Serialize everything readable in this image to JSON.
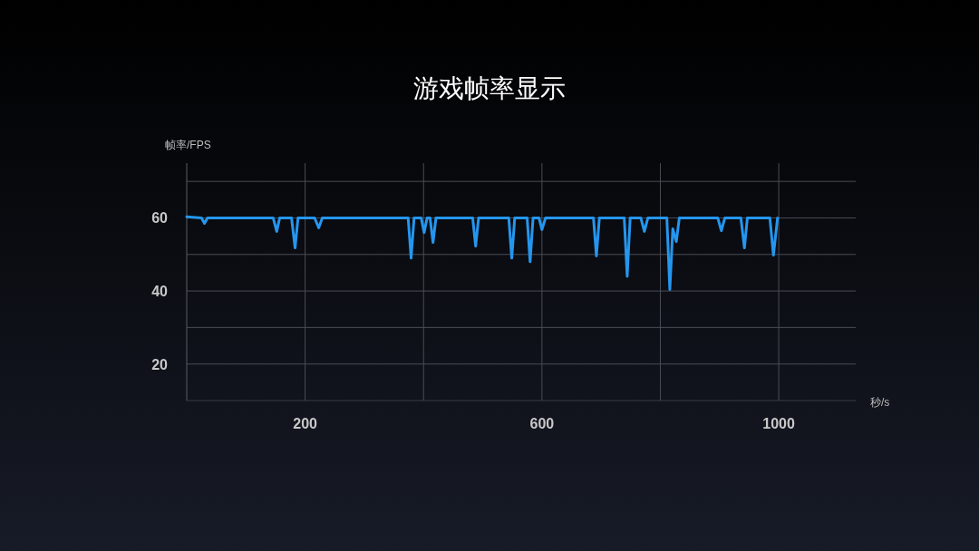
{
  "chart_data": {
    "type": "line",
    "title": "游戏帧率显示",
    "xlabel": "秒/s",
    "ylabel": "帧率/FPS",
    "x": [
      0,
      25,
      30,
      35,
      120,
      146,
      152,
      157,
      177,
      183,
      188,
      216,
      223,
      229,
      374,
      379,
      384,
      396,
      401,
      406,
      411,
      416,
      421,
      483,
      488,
      493,
      544,
      549,
      554,
      575,
      580,
      585,
      595,
      600,
      606,
      687,
      692,
      697,
      739,
      744,
      749,
      767,
      773,
      779,
      811,
      816,
      821,
      827,
      832,
      897,
      903,
      909,
      936,
      942,
      947,
      985,
      991,
      998
    ],
    "series": [
      {
        "color": "#2596ee",
        "values": [
          60.3,
          60,
          58.5,
          60,
          60,
          60,
          56.3,
          60,
          60,
          51.8,
          60,
          60,
          57.3,
          60,
          60,
          49,
          60,
          60,
          56,
          60,
          60,
          53.3,
          60,
          60,
          52.3,
          60,
          60,
          49,
          60,
          60,
          48,
          60,
          60,
          56.8,
          60,
          60,
          49.6,
          60,
          60,
          44,
          60,
          60,
          56.3,
          60,
          60,
          40.4,
          57,
          53.5,
          60,
          60,
          56.5,
          60,
          60,
          51.8,
          60,
          60,
          49.8,
          60
        ]
      }
    ],
    "xlim": [
      0,
      1130
    ],
    "xticks": [
      200,
      {
        "value": 400,
        "label": null
      },
      600,
      {
        "value": 800,
        "label": null
      },
      1000
    ],
    "ylim": [
      10,
      75
    ],
    "yticks": [
      20,
      {
        "value": 30,
        "label": null
      },
      40,
      {
        "value": 50,
        "label": null
      },
      60,
      {
        "value": 70,
        "label": null
      }
    ],
    "grid": true
  }
}
